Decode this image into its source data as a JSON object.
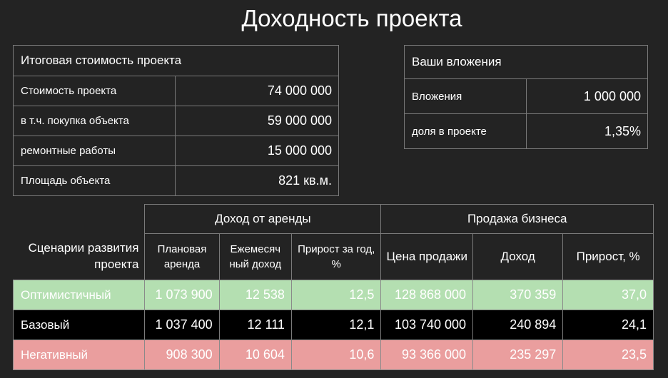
{
  "page": {
    "title": "Доходность проекта"
  },
  "cost": {
    "header": "Итоговая стоимость проекта",
    "rows": [
      {
        "label": "Стоимость проекта",
        "value": "74 000 000"
      },
      {
        "label": "в т.ч. покупка объекта",
        "value": "59 000 000"
      },
      {
        "label": "ремонтные работы",
        "value": "15 000 000"
      },
      {
        "label": "Площадь объекта",
        "value": "821 кв.м."
      }
    ]
  },
  "invest": {
    "header": "Ваши вложения",
    "rows": [
      {
        "label": "Вложения",
        "value": "1 000 000"
      },
      {
        "label": "доля в проекте",
        "value": "1,35%"
      }
    ]
  },
  "scenarios": {
    "corner_label": "Сценарии развития проекта",
    "group_rent": "Доход от аренды",
    "group_sale": "Продажа бизнеса",
    "columns": [
      "Плановая аренда",
      "Ежемесяч ный доход",
      "Прирост за год, %",
      "Цена продажи",
      "Доход",
      "Прирост, %"
    ],
    "rows": [
      {
        "name": "Оптимистичный",
        "values": [
          "1 073 900",
          "12 538",
          "12,5",
          "128 868 000",
          "370 359",
          "37,0"
        ]
      },
      {
        "name": "Базовый",
        "values": [
          "1 037 400",
          "12 111",
          "12,1",
          "103 740 000",
          "240 894",
          "24,1"
        ]
      },
      {
        "name": "Негативный",
        "values": [
          "908 300",
          "10 604",
          "10,6",
          "93 366 000",
          "235 297",
          "23,5"
        ]
      }
    ]
  },
  "colors": {
    "background": "#232323",
    "optimistic": "#b4dfb1",
    "base": "#000000",
    "negative": "#ea9e9e"
  }
}
